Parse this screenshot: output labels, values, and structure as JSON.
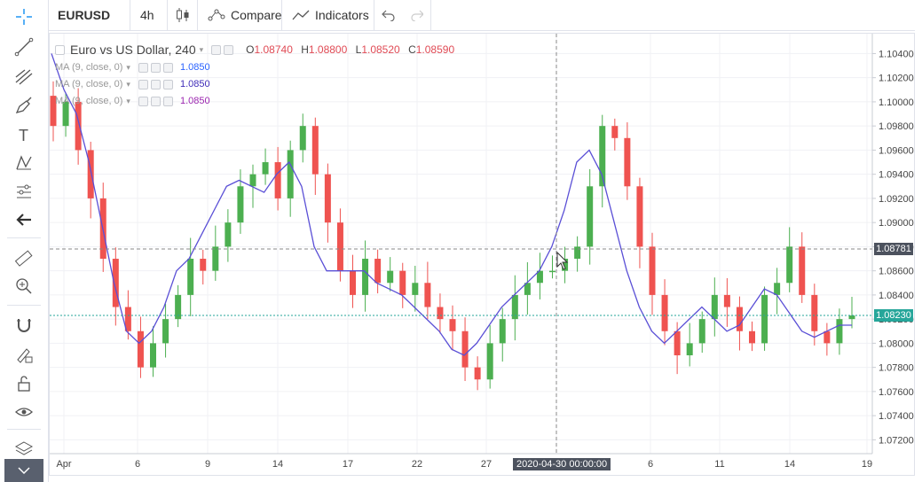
{
  "header": {
    "symbol": "EURUSD",
    "interval": "4h",
    "compare_label": "Compare",
    "indicators_label": "Indicators"
  },
  "legend": {
    "title": "Euro vs US Dollar, 240",
    "open_key": "O",
    "open": "1.08740",
    "high_key": "H",
    "high": "1.08800",
    "low_key": "L",
    "low": "1.08520",
    "close_key": "C",
    "close": "1.08590",
    "ma": [
      {
        "label": "MA (9, close, 0)",
        "value": "1.0850",
        "color": "#2962ff"
      },
      {
        "label": "MA (9, close, 0)",
        "value": "1.0850",
        "color": "#3f2cb8"
      },
      {
        "label": "MA (9, close, 0)",
        "value": "1.0850",
        "color": "#9c27b0"
      }
    ]
  },
  "crosshair": {
    "price_label": "1.08781",
    "time_label": "2020-04-30 00:00:00"
  },
  "last_price_label": "1.08230",
  "colors": {
    "up": "#4caf50",
    "down": "#ef5350",
    "ma_line": "#5a4fd6",
    "accent": "#2196f3",
    "last_price": "#26a69a"
  },
  "chart_data": {
    "type": "candlestick",
    "ylim": [
      1.071,
      1.1055
    ],
    "y_ticks": [
      "1.10400",
      "1.10200",
      "1.10000",
      "1.09800",
      "1.09600",
      "1.09400",
      "1.09200",
      "1.09000",
      "1.08800",
      "1.08600",
      "1.08400",
      "1.08200",
      "1.08000",
      "1.07800",
      "1.07600",
      "1.07400",
      "1.07200"
    ],
    "x_ticks": [
      "Apr",
      "6",
      "9",
      "14",
      "17",
      "22",
      "27",
      "2020-04-30 00:00:00",
      "6",
      "11",
      "14",
      "19"
    ],
    "close_trace": [
      1.098,
      1.1,
      1.096,
      1.092,
      1.087,
      1.083,
      1.081,
      1.078,
      1.08,
      1.082,
      1.084,
      1.087,
      1.086,
      1.088,
      1.09,
      1.093,
      1.094,
      1.095,
      1.092,
      1.096,
      1.098,
      1.094,
      1.09,
      1.086,
      1.084,
      1.087,
      1.085,
      1.086,
      1.084,
      1.085,
      1.083,
      1.082,
      1.081,
      1.078,
      1.077,
      1.08,
      1.082,
      1.084,
      1.085,
      1.086,
      1.086,
      1.087,
      1.088,
      1.093,
      1.098,
      1.097,
      1.093,
      1.088,
      1.084,
      1.081,
      1.079,
      1.08,
      1.082,
      1.084,
      1.083,
      1.081,
      1.08,
      1.084,
      1.085,
      1.088,
      1.084,
      1.081,
      1.08,
      1.082,
      1.0823
    ],
    "ma_trace": [
      1.104,
      1.101,
      1.099,
      1.095,
      1.09,
      1.085,
      1.081,
      1.08,
      1.081,
      1.083,
      1.086,
      1.087,
      1.089,
      1.091,
      1.093,
      1.0935,
      1.093,
      1.0925,
      1.094,
      1.095,
      1.093,
      1.088,
      1.086,
      1.086,
      1.086,
      1.086,
      1.085,
      1.0845,
      1.084,
      1.083,
      1.082,
      1.081,
      1.0795,
      1.079,
      1.08,
      1.0815,
      1.083,
      1.084,
      1.085,
      1.086,
      1.088,
      1.091,
      1.095,
      1.096,
      1.094,
      1.09,
      1.086,
      1.083,
      1.081,
      1.08,
      1.081,
      1.082,
      1.083,
      1.082,
      1.081,
      1.0815,
      1.083,
      1.0845,
      1.084,
      1.0825,
      1.081,
      1.0805,
      1.081,
      1.0815,
      1.0815
    ]
  }
}
